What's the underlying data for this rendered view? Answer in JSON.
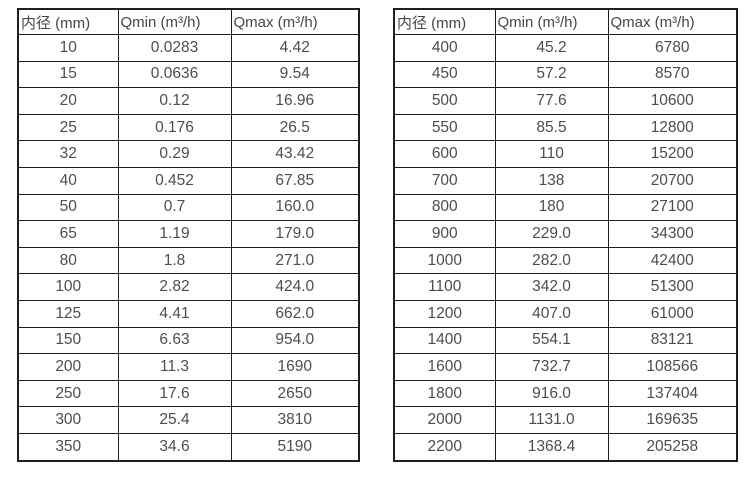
{
  "colors": {
    "background": "#ffffff",
    "border": "#1f1f1f",
    "header_text": "#474747",
    "cell_text": "#4d4d4d"
  },
  "tables": [
    {
      "name": "flow-rate-table-small-diameters",
      "headers": [
        "内径 (mm)",
        "Qmin (m³/h)",
        "Qmax (m³/h)"
      ],
      "rows": [
        [
          "10",
          "0.0283",
          "4.42"
        ],
        [
          "15",
          "0.0636",
          "9.54"
        ],
        [
          "20",
          "0.12",
          "16.96"
        ],
        [
          "25",
          "0.176",
          "26.5"
        ],
        [
          "32",
          "0.29",
          "43.42"
        ],
        [
          "40",
          "0.452",
          "67.85"
        ],
        [
          "50",
          "0.7",
          "160.0"
        ],
        [
          "65",
          "1.19",
          "179.0"
        ],
        [
          "80",
          "1.8",
          "271.0"
        ],
        [
          "100",
          "2.82",
          "424.0"
        ],
        [
          "125",
          "4.41",
          "662.0"
        ],
        [
          "150",
          "6.63",
          "954.0"
        ],
        [
          "200",
          "11.3",
          "1690"
        ],
        [
          "250",
          "17.6",
          "2650"
        ],
        [
          "300",
          "25.4",
          "3810"
        ],
        [
          "350",
          "34.6",
          "5190"
        ]
      ]
    },
    {
      "name": "flow-rate-table-large-diameters",
      "headers": [
        "内径 (mm)",
        "Qmin (m³/h)",
        "Qmax (m³/h)"
      ],
      "rows": [
        [
          "400",
          "45.2",
          "6780"
        ],
        [
          "450",
          "57.2",
          "8570"
        ],
        [
          "500",
          "77.6",
          "10600"
        ],
        [
          "550",
          "85.5",
          "12800"
        ],
        [
          "600",
          "110",
          "15200"
        ],
        [
          "700",
          "138",
          "20700"
        ],
        [
          "800",
          "180",
          "27100"
        ],
        [
          "900",
          "229.0",
          "34300"
        ],
        [
          "1000",
          "282.0",
          "42400"
        ],
        [
          "1100",
          "342.0",
          "51300"
        ],
        [
          "1200",
          "407.0",
          "61000"
        ],
        [
          "1400",
          "554.1",
          "83121"
        ],
        [
          "1600",
          "732.7",
          "108566"
        ],
        [
          "1800",
          "916.0",
          "137404"
        ],
        [
          "2000",
          "1131.0",
          "169635"
        ],
        [
          "2200",
          "1368.4",
          "205258"
        ]
      ]
    }
  ]
}
